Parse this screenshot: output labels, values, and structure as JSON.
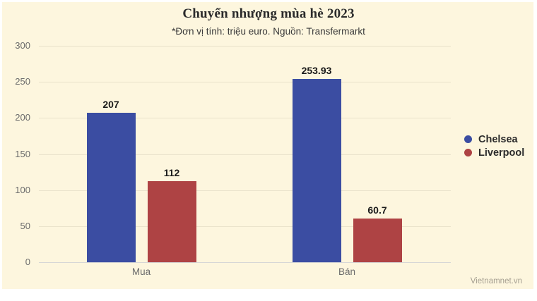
{
  "page": {
    "footer": "Vietnamnet.vn"
  },
  "chart_data": {
    "type": "bar",
    "title": "Chuyển nhượng mùa hè 2023",
    "subtitle": "*Đơn vị tính: triệu euro. Nguồn: Transfermarkt",
    "categories": [
      "Mua",
      "Bán"
    ],
    "series": [
      {
        "name": "Chelsea",
        "color": "#3b4da2",
        "values": [
          207,
          253.93
        ]
      },
      {
        "name": "Liverpool",
        "color": "#ae4344",
        "values": [
          112,
          60.7
        ]
      }
    ],
    "ylim": [
      0,
      300
    ],
    "yticks": [
      0,
      50,
      100,
      150,
      200,
      250,
      300
    ],
    "grid": true,
    "legend_position": "right",
    "background": "#fdf6de"
  }
}
